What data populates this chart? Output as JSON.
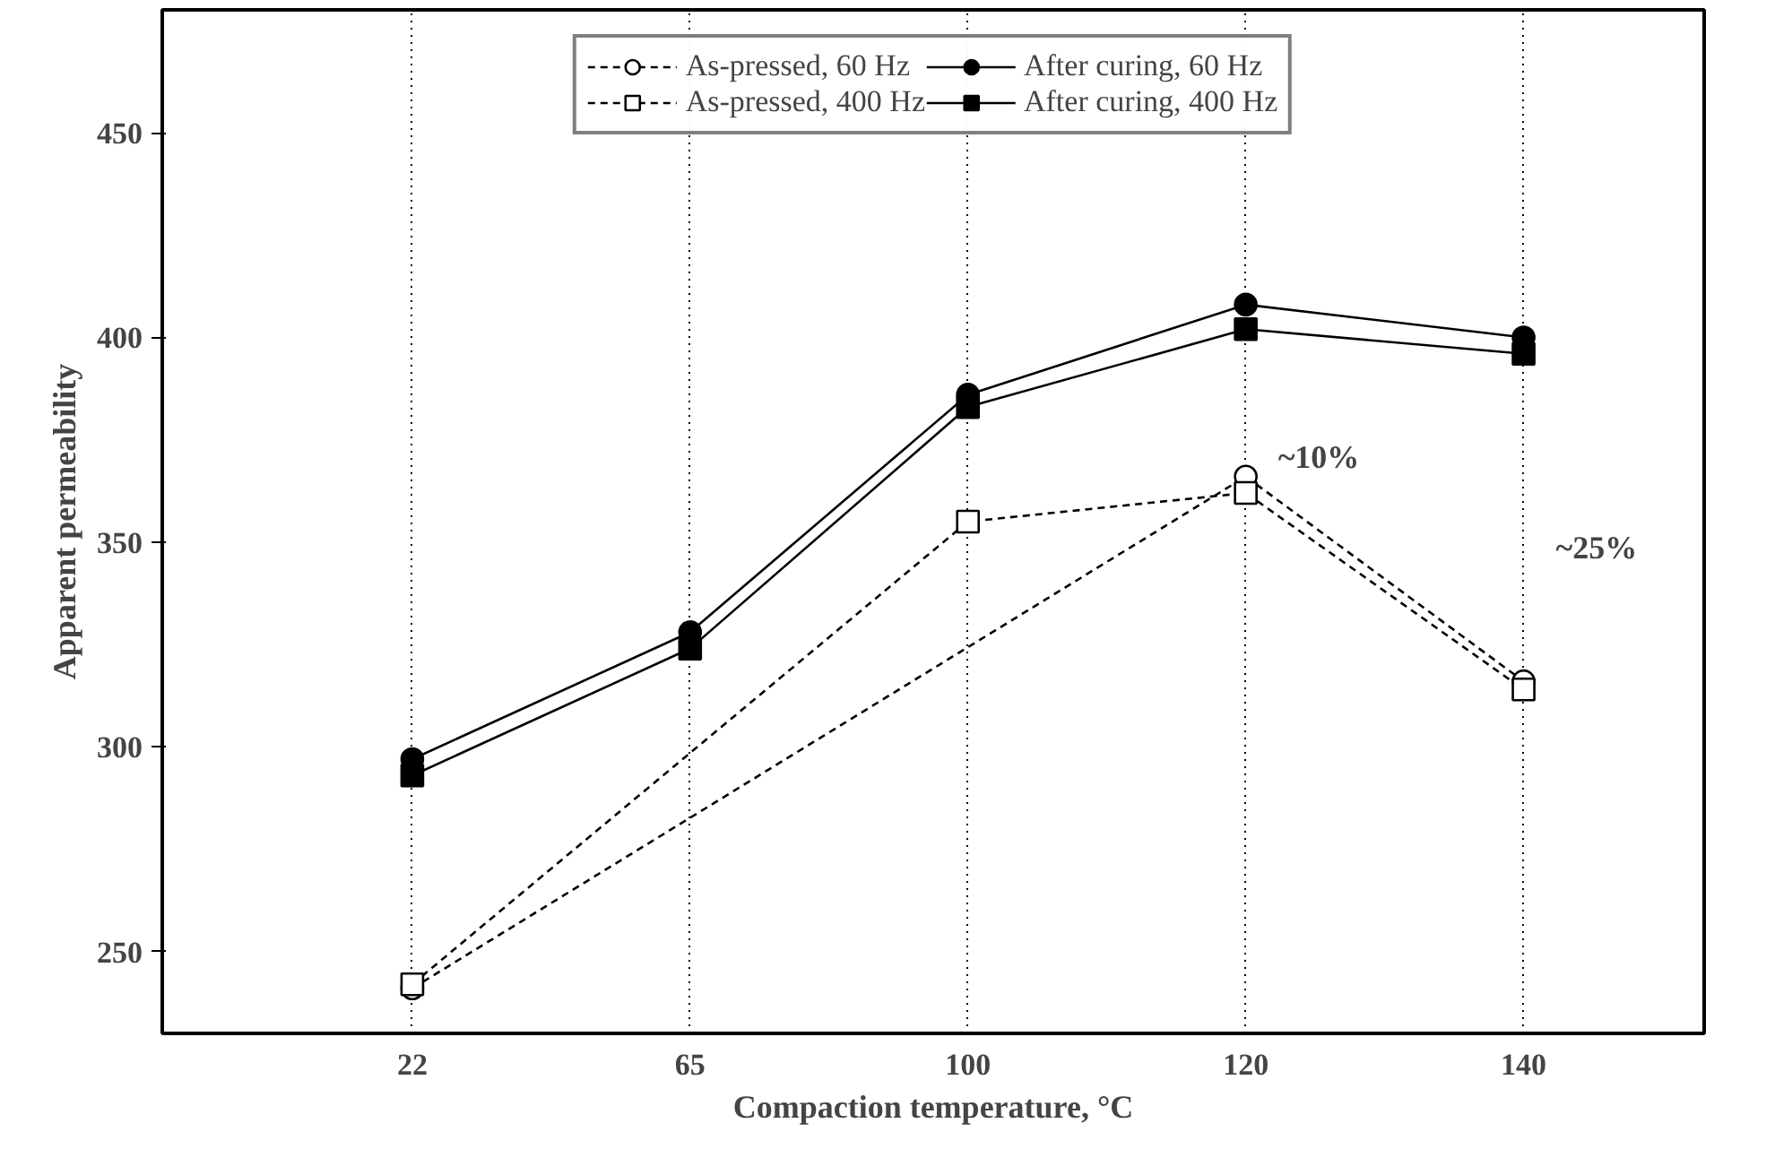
{
  "chart_data": {
    "type": "line",
    "xlabel": "Compaction temperature, °C",
    "ylabel": "Apparent permeability",
    "categories": [
      "22",
      "65",
      "100",
      "120",
      "140"
    ],
    "series": [
      {
        "name": "As-pressed, 60 Hz",
        "color": "#000000",
        "marker": "circle",
        "line_style": "dashed",
        "values": [
          241,
          null,
          null,
          366,
          316
        ]
      },
      {
        "name": "As-pressed, 400 Hz",
        "color": "#000000",
        "marker": "square",
        "line_style": "dashed",
        "values": [
          242,
          null,
          355,
          362,
          314
        ]
      },
      {
        "name": "After curing, 60 Hz",
        "color": "#000000",
        "marker": "circle",
        "line_style": "solid",
        "values": [
          297,
          328,
          386,
          408,
          400
        ]
      },
      {
        "name": "After curing, 400 Hz",
        "color": "#000000",
        "marker": "square",
        "line_style": "solid",
        "values": [
          293,
          324,
          383,
          402,
          396
        ]
      }
    ],
    "ylim": [
      230,
      480
    ],
    "yticks": [
      250,
      300,
      350,
      400,
      450
    ],
    "grid": "x",
    "legend": "top",
    "annotations": [
      "~10%",
      "~25%"
    ]
  }
}
